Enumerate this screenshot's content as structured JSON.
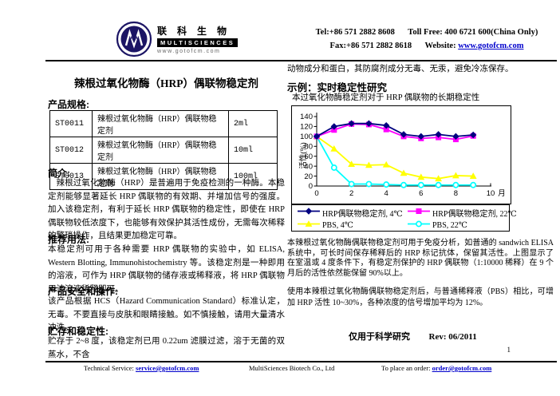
{
  "page_number": "1",
  "header": {
    "logo": {
      "cn": "联 科 生 物",
      "en": "MULTISCIENCES",
      "site": "www.gotofcm.com"
    },
    "tel": "Tel:+86 571 2882 8608",
    "toll_free": "Toll Free: 400 6721 600(China Only)",
    "fax": "Fax:+86 571 2882 8618",
    "website_label": "Website:",
    "website": "www.gotofcm.com"
  },
  "left": {
    "title": "辣根过氧化物酶（HRP）偶联物稳定剂",
    "specs_heading": "产品规格:",
    "specs_table": {
      "rows": [
        {
          "cat": "ST0011",
          "name": "辣根过氧化物酶（HRP）偶联物稳定剂",
          "size": "2ml"
        },
        {
          "cat": "ST0012",
          "name": "辣根过氧化物酶（HRP）偶联物稳定剂",
          "size": "10ml"
        },
        {
          "cat": "ST0013",
          "name": "辣根过氧化物酶（HRP）偶联物稳定剂",
          "size": "100ml"
        }
      ]
    },
    "intro_heading": "简介:",
    "intro_text": "辣根过氧化物酶（HRP）是普遍用于免疫检测的一种酶。本稳定剂能够显著延长 HRP 偶联物的有效期、并增加信号的强度。加入该稳定剂，有利于延长 HRP 偶联物的稳定性，即使在 HRP 偶联物较低浓度下，也能够有效保护其活性成份，无需每次稀释的繁琐操作，且结果更加稳定可靠。",
    "usage_heading": "推荐用法:",
    "usage_text": "本稳定剂可用于各种需要 HRP 偶联物的实验中，如 ELISA, Western Blotting, Immunohistochemistry 等。该稳定剂是一种即用的溶液，可作为 HRP 偶联物的储存液或稀释液，将 HRP 偶联物用该溶液稀释即可。",
    "safety_heading": "产品安全和操作:",
    "safety_text": "该产品根据 HCS（Hazard Communication Standard）标准认定，无毒。不要直接与皮肤和眼睛接触。如不慎接触，请用大量清水冲洗。",
    "storage_heading": "贮存和稳定性:",
    "storage_text": "贮存于 2~8 度，该稳定剂已用 0.22um 滤膜过滤，溶于无菌的双蒸水，不含"
  },
  "right": {
    "continuation": "动物成分和蛋白，其防腐剂成分无毒、无汞，避免冷冻保存。",
    "example_heading": "示例：实时稳定性研究",
    "example_subtitle": "本过氧化物酶稳定剂对于 HRP 偶联物的长期稳定性",
    "para1": "本辣根过氧化物酶偶联物稳定剂可用于免疫分析，如普通的 sandwich ELISA 系统中，可长时间保存稀释后的 HRP 标记抗体，保留其活性。上图显示了在室温或 4 度条件下，有稳定剂保护的 HRP 偶联物（1:10000 稀释）在 9 个月后的活性依然能保留 90%以上。",
    "para2": "使用本辣根过氧化物酶偶联物稳定剂后，与普通稀释液（PBS）相比，可增加 HRP 活性 10~30%，各种浓度的信号增加平均为 12%。",
    "research_only": "仅用于科学研究",
    "rev": "Rev: 06/2011"
  },
  "chart_data": {
    "type": "line",
    "x": [
      0,
      1,
      2,
      3,
      4,
      5,
      6,
      7,
      8,
      9
    ],
    "series": [
      {
        "name": "HRP偶联物稳定剂, 4℃",
        "color": "#000080",
        "marker": "diamond",
        "values": [
          100,
          120,
          126,
          126,
          122,
          104,
          100,
          104,
          100,
          103
        ]
      },
      {
        "name": "HRP偶联物稳定剂, 22℃",
        "color": "#FF00FF",
        "marker": "square",
        "values": [
          100,
          113,
          125,
          124,
          114,
          100,
          96,
          98,
          94,
          101
        ]
      },
      {
        "name": "PBS, 4℃",
        "color": "#FFFF00",
        "marker": "triangle",
        "values": [
          100,
          75,
          44,
          42,
          43,
          26,
          18,
          15,
          21,
          20
        ]
      },
      {
        "name": "PBS, 22℃",
        "color": "#00FFFF",
        "marker": "circle-open",
        "values": [
          100,
          37,
          4,
          4,
          3,
          2,
          2,
          2,
          2,
          2
        ]
      }
    ],
    "ylabel": "活性(%)",
    "x_unit": "月",
    "ylim": [
      0,
      140
    ],
    "yticks": [
      0,
      20,
      40,
      60,
      80,
      100,
      120,
      140
    ],
    "xticks": [
      0,
      2,
      4,
      6,
      8,
      10
    ],
    "legend_position": "bottom-box",
    "grid": false
  },
  "footer": {
    "tech_label": "Technical Service: ",
    "tech_email": "service@gotofcm.com",
    "company": "MultiSciences Biotech Co., Ltd",
    "order_label": "To place an order: ",
    "order_email": "order@gotofcm.com"
  }
}
